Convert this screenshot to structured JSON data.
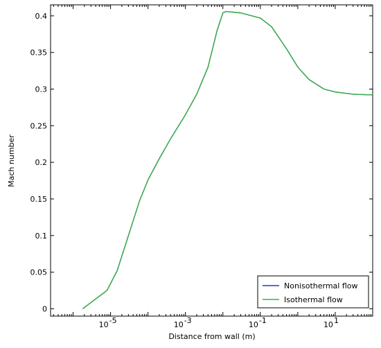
{
  "chart_data": {
    "type": "line",
    "title": "",
    "xlabel": "Distance from wall (m)",
    "ylabel": "Mach number",
    "x_scale": "log",
    "xlim": [
      2.5e-07,
      100
    ],
    "ylim": [
      -0.01,
      0.415
    ],
    "x_major_ticks": [
      1e-05,
      0.001,
      0.1,
      10
    ],
    "x_tick_labels": [
      {
        "base": "10",
        "exp": "-5"
      },
      {
        "base": "10",
        "exp": "-3"
      },
      {
        "base": "10",
        "exp": "-1"
      },
      {
        "base": "10",
        "exp": "1"
      }
    ],
    "y_ticks": [
      0,
      0.05,
      0.1,
      0.15,
      0.2,
      0.25,
      0.3,
      0.35,
      0.4
    ],
    "y_tick_labels": [
      "0",
      "0.05",
      "0.1",
      "0.15",
      "0.2",
      "0.25",
      "0.3",
      "0.35",
      "0.4"
    ],
    "grid": false,
    "legend_position": "bottom-right",
    "series": [
      {
        "name": "Nonisothermal flow",
        "color": "#1f3fbf",
        "x": [
          1.8e-06,
          8e-06,
          1.5e-05,
          3e-05,
          6e-05,
          0.0001,
          0.0002,
          0.0004,
          0.001,
          0.002,
          0.004,
          0.007,
          0.01,
          0.012,
          0.03,
          0.1,
          0.2,
          0.5,
          1,
          2,
          5,
          10,
          30,
          100
        ],
        "y": [
          0,
          0.025,
          0.052,
          0.1,
          0.148,
          0.176,
          0.205,
          0.232,
          0.265,
          0.293,
          0.33,
          0.38,
          0.404,
          0.406,
          0.404,
          0.397,
          0.385,
          0.355,
          0.33,
          0.313,
          0.3,
          0.296,
          0.293,
          0.292
        ]
      },
      {
        "name": "Isothermal flow",
        "color": "#3cb043",
        "x": [
          1.8e-06,
          8e-06,
          1.5e-05,
          3e-05,
          6e-05,
          0.0001,
          0.0002,
          0.0004,
          0.001,
          0.002,
          0.004,
          0.007,
          0.01,
          0.012,
          0.03,
          0.1,
          0.2,
          0.5,
          1,
          2,
          5,
          10,
          30,
          100
        ],
        "y": [
          0,
          0.025,
          0.052,
          0.1,
          0.148,
          0.176,
          0.205,
          0.232,
          0.265,
          0.293,
          0.33,
          0.38,
          0.404,
          0.406,
          0.404,
          0.397,
          0.385,
          0.355,
          0.33,
          0.313,
          0.3,
          0.296,
          0.293,
          0.292
        ]
      }
    ]
  }
}
